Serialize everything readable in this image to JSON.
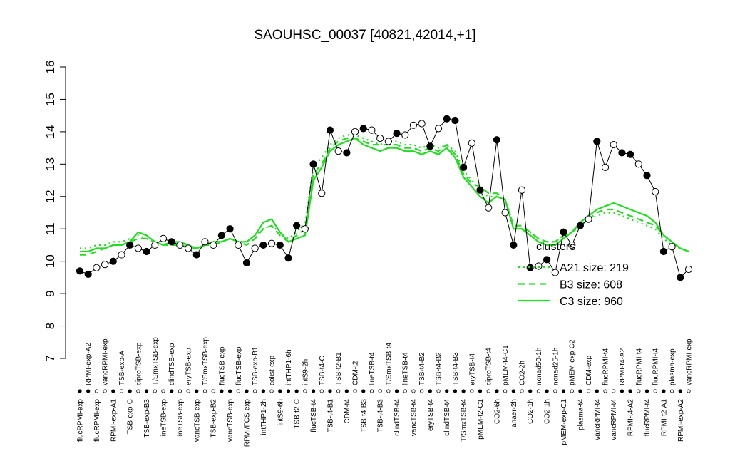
{
  "chart_data": {
    "type": "line",
    "title": "SAOUHSC_00037 [40821,42014,+1]",
    "categories": [
      "flucRPMI-exp",
      "RPMI-exp-A2",
      "flucRPMI-exp",
      "vancRPMI-exp",
      "RPMI-exp-A1",
      "TSB-exp-A",
      "TSB-exp-C",
      "ciproTSB-exp",
      "TSB-exp-B3",
      "T/SmxTSB-exp",
      "lineTSB-exp",
      "clindTSB-exp",
      "lineTSB-exp",
      "eryTSB-exp",
      "vancTSB-exp",
      "T/SmxTSB-exp",
      "TSB-exp-B2",
      "flucTSB-exp",
      "vancTSB-exp",
      "flucTSB-exp",
      "RPMI/FCS-exp",
      "TSB-exp-B1",
      "intTHP1-2h",
      "colist-exp",
      "intS9-6h",
      "intTHP1-6h",
      "TSB-t2-C",
      "intS9-2h",
      "flucTSB-t4",
      "TSB-t4-C",
      "TSB-t4-B1",
      "TSB-t2-B1",
      "CDM-t4",
      "CDM-t2",
      "TSB-t4-B3",
      "lineTSB-t4",
      "TSB-t4-B3",
      "T/SmxTSB-t4",
      "clindTSB-t4",
      "lineTSB-t4",
      "vancTSB-t4",
      "TSB-t4-B2",
      "eryTSB-t4",
      "TSB-t4-B2",
      "clindTSB-t4",
      "TSB-t4-B3",
      "T/SmxTSB-t4",
      "eryTSB-t4",
      "pMEM-t2-C1",
      "ciproTSB-t4",
      "CO2-6h",
      "pMEM-t4-C1",
      "anaer-2h",
      "CO2-2h",
      "CO2-1h",
      "nonad50-1h",
      "CO2-1h",
      "nonad25-1h",
      "pMEM-exp-C1",
      "pMEM-exp-C2",
      "plasma-t4",
      "CDM-exp",
      "vancRPMI-t4",
      "flucRPMI-t4",
      "vancRPMI-t4",
      "RPMI-t4-A2",
      "RPMI-t4-A2",
      "flucRPMI-t4",
      "flucRPMI-t4",
      "flucRPMI-t4",
      "RPMI-t2-A1",
      "plasma-exp",
      "RPMI-exp-A2",
      "vancRPMI-exp"
    ],
    "values": [
      9.7,
      9.6,
      9.8,
      9.9,
      10.0,
      10.2,
      10.5,
      10.4,
      10.3,
      10.5,
      10.7,
      10.6,
      10.5,
      10.4,
      10.2,
      10.6,
      10.5,
      10.8,
      11.0,
      10.5,
      9.95,
      10.4,
      10.5,
      10.55,
      10.5,
      10.1,
      11.1,
      11.0,
      13.0,
      12.1,
      14.05,
      13.4,
      13.35,
      14.0,
      14.1,
      14.05,
      13.8,
      13.7,
      13.95,
      13.9,
      14.2,
      14.25,
      13.55,
      14.1,
      14.4,
      14.35,
      12.9,
      13.65,
      12.2,
      11.65,
      13.75,
      11.5,
      10.5,
      12.2,
      9.8,
      9.85,
      10.05,
      9.65,
      10.9,
      10.5,
      11.1,
      11.3,
      13.7,
      12.9,
      13.6,
      13.35,
      13.3,
      13.0,
      12.65,
      12.15,
      10.3,
      10.45,
      9.5,
      9.75
    ],
    "filled": [
      true,
      true,
      false,
      false,
      true,
      false,
      true,
      false,
      true,
      false,
      false,
      true,
      false,
      false,
      true,
      false,
      false,
      true,
      true,
      false,
      true,
      false,
      true,
      false,
      true,
      true,
      true,
      false,
      true,
      false,
      true,
      false,
      true,
      false,
      true,
      false,
      false,
      false,
      true,
      false,
      false,
      false,
      true,
      false,
      true,
      true,
      true,
      false,
      true,
      false,
      true,
      false,
      true,
      false,
      true,
      false,
      true,
      false,
      true,
      false,
      true,
      false,
      true,
      false,
      false,
      true,
      true,
      false,
      true,
      false,
      true,
      false,
      true,
      false
    ],
    "color": "#000000",
    "series": [
      {
        "name": "A21 size: 219",
        "style": "dotted",
        "color": "#22dd22",
        "values": [
          10.4,
          10.4,
          10.5,
          10.5,
          10.6,
          10.6,
          10.7,
          10.8,
          10.7,
          10.6,
          10.5,
          10.6,
          10.5,
          10.5,
          10.4,
          10.5,
          10.6,
          10.6,
          10.7,
          10.6,
          10.6,
          10.8,
          11.0,
          11.1,
          10.9,
          10.7,
          10.9,
          11.2,
          12.9,
          13.2,
          13.6,
          13.8,
          13.9,
          13.9,
          13.8,
          13.7,
          13.6,
          13.7,
          13.7,
          13.6,
          13.6,
          13.5,
          13.6,
          13.5,
          13.6,
          13.4,
          12.8,
          12.5,
          12.2,
          12.0,
          12.0,
          11.9,
          11.1,
          11.0,
          10.9,
          10.7,
          10.6,
          10.6,
          10.8,
          10.9,
          11.1,
          11.3,
          11.4,
          11.5,
          11.5,
          11.4,
          11.3,
          11.2,
          11.1,
          11.0,
          10.7,
          10.5,
          10.4,
          10.3
        ]
      },
      {
        "name": "B3 size: 608",
        "style": "dashed",
        "color": "#22dd22",
        "values": [
          10.2,
          10.2,
          10.3,
          10.4,
          10.5,
          10.5,
          10.6,
          10.7,
          10.7,
          10.6,
          10.5,
          10.5,
          10.5,
          10.4,
          10.4,
          10.5,
          10.5,
          10.6,
          10.7,
          10.6,
          10.5,
          10.7,
          11.0,
          11.1,
          10.8,
          10.6,
          10.8,
          11.0,
          12.7,
          13.0,
          13.5,
          13.7,
          13.8,
          13.8,
          13.7,
          13.6,
          13.6,
          13.6,
          13.6,
          13.5,
          13.5,
          13.4,
          13.5,
          13.4,
          13.6,
          13.3,
          12.7,
          12.4,
          12.3,
          12.1,
          12.1,
          11.9,
          11.1,
          11.1,
          10.9,
          10.7,
          10.6,
          10.6,
          10.8,
          10.9,
          11.1,
          11.3,
          11.5,
          11.6,
          11.6,
          11.5,
          11.4,
          11.3,
          11.2,
          11.1,
          10.8,
          10.6,
          10.4,
          10.3
        ]
      },
      {
        "name": "C3 size: 960",
        "style": "solid",
        "color": "#22dd22",
        "values": [
          10.3,
          10.3,
          10.4,
          10.4,
          10.5,
          10.5,
          10.6,
          10.9,
          10.8,
          10.6,
          10.5,
          10.6,
          10.6,
          10.5,
          10.4,
          10.5,
          10.6,
          10.6,
          10.7,
          10.6,
          10.6,
          10.8,
          11.2,
          11.3,
          10.9,
          10.6,
          10.7,
          10.8,
          12.5,
          12.9,
          13.4,
          13.6,
          13.7,
          13.8,
          13.6,
          13.5,
          13.4,
          13.5,
          13.5,
          13.4,
          13.4,
          13.3,
          13.4,
          13.3,
          13.5,
          13.2,
          12.6,
          12.3,
          12.0,
          11.8,
          12.0,
          11.9,
          11.0,
          11.0,
          10.8,
          10.6,
          10.5,
          10.5,
          10.7,
          10.9,
          11.2,
          11.4,
          11.6,
          11.7,
          11.8,
          11.7,
          11.6,
          11.5,
          11.4,
          11.2,
          10.8,
          10.6,
          10.4,
          10.3
        ]
      }
    ],
    "legend_title": "clusters",
    "ylim": [
      7,
      16
    ],
    "yticks": [
      7,
      8,
      9,
      10,
      11,
      12,
      13,
      14,
      15,
      16
    ]
  }
}
